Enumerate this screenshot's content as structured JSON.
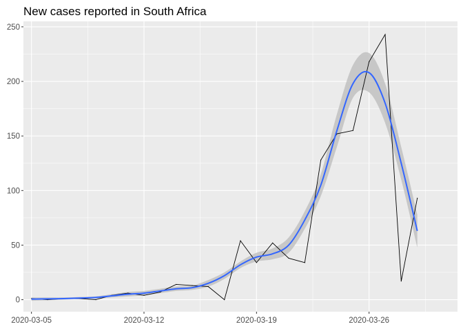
{
  "chart_data": {
    "type": "line",
    "title": "New cases reported in South Africa",
    "xlabel": "",
    "ylabel": "",
    "x": [
      "2020-03-05",
      "2020-03-06",
      "2020-03-07",
      "2020-03-08",
      "2020-03-09",
      "2020-03-10",
      "2020-03-11",
      "2020-03-12",
      "2020-03-13",
      "2020-03-14",
      "2020-03-15",
      "2020-03-16",
      "2020-03-17",
      "2020-03-18",
      "2020-03-19",
      "2020-03-20",
      "2020-03-21",
      "2020-03-22",
      "2020-03-23",
      "2020-03-24",
      "2020-03-25",
      "2020-03-26",
      "2020-03-27",
      "2020-03-28",
      "2020-03-29",
      "2020-03-30"
    ],
    "xlim": [
      "2020-03-04T12:00",
      "2020-03-31T12:00"
    ],
    "ylim": [
      -11,
      255
    ],
    "x_ticks": [
      "2020-03-05",
      "2020-03-12",
      "2020-03-19",
      "2020-03-26"
    ],
    "y_ticks": [
      0,
      50,
      100,
      150,
      200,
      250
    ],
    "grid": true,
    "background": "#ebebeb",
    "series": [
      {
        "kind": "observed",
        "color": "#000000",
        "values": [
          1,
          0,
          1,
          1,
          0,
          4,
          6,
          4,
          7,
          14,
          13,
          12,
          0,
          54,
          34,
          52,
          38,
          34,
          128,
          152,
          155,
          218,
          243,
          17,
          93,
          null
        ]
      },
      {
        "kind": "loess-smooth",
        "color": "#3366ff",
        "band_color": "#bdbdbd",
        "x": [
          "2020-03-05",
          "2020-03-06",
          "2020-03-07",
          "2020-03-08",
          "2020-03-09",
          "2020-03-10",
          "2020-03-11",
          "2020-03-12",
          "2020-03-13",
          "2020-03-14",
          "2020-03-15",
          "2020-03-16",
          "2020-03-17",
          "2020-03-18",
          "2020-03-19",
          "2020-03-20",
          "2020-03-21",
          "2020-03-22",
          "2020-03-23",
          "2020-03-24",
          "2020-03-25",
          "2020-03-26",
          "2020-03-27",
          "2020-03-28",
          "2020-03-29"
        ],
        "values": [
          0.5,
          0.8,
          1,
          1.5,
          2,
          3.5,
          5,
          6,
          8,
          10,
          11,
          15,
          22,
          32,
          39,
          42,
          50,
          73,
          105,
          155,
          198,
          208,
          180,
          125,
          63
        ],
        "lower": [
          -1,
          -0.5,
          0,
          0.5,
          1,
          2,
          3,
          4,
          6,
          8,
          9,
          12,
          19,
          29,
          35,
          37,
          43,
          65,
          95,
          140,
          185,
          190,
          162,
          110,
          48
        ],
        "upper": [
          2,
          2,
          2,
          2.5,
          3,
          5,
          7,
          8,
          10,
          12,
          13,
          18,
          25,
          35,
          43,
          47,
          57,
          81,
          115,
          170,
          215,
          226,
          198,
          140,
          78
        ]
      }
    ]
  }
}
